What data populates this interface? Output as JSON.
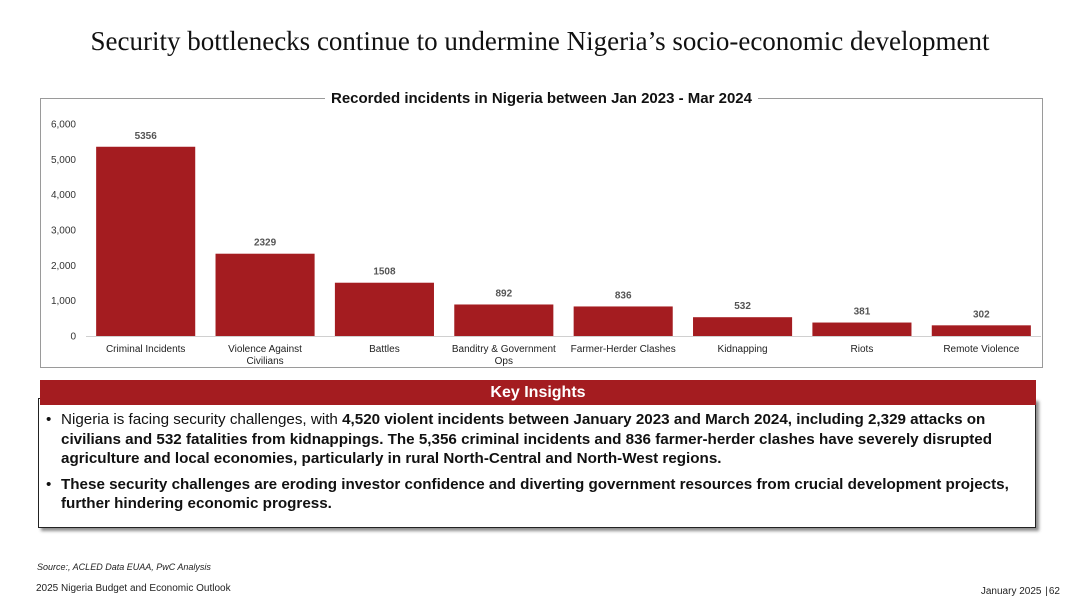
{
  "page": {
    "title": "Security bottlenecks continue to undermine Nigeria’s socio-economic development",
    "source": "Source:, ACLED Data EUAA, PwC Analysis",
    "footer_left": "2025 Nigeria Budget and Economic Outlook",
    "footer_date": "January 2025",
    "footer_page": "62"
  },
  "insights": {
    "header": "Key Insights",
    "bullets": [
      {
        "plain": "Nigeria is facing security challenges, with ",
        "bold": "4,520 violent incidents between January 2023 and March 2024, including 2,329 attacks on civilians and 532 fatalities from kidnappings. The 5,356 criminal incidents and 836 farmer-herder clashes have severely disrupted agriculture and local economies, particularly in rural North-Central and North-West regions."
      },
      {
        "plain": "",
        "bold": "These security challenges are eroding investor confidence and diverting government resources from crucial development projects, further hindering economic progress."
      }
    ]
  },
  "chart_data": {
    "type": "bar",
    "title": "Recorded incidents in Nigeria between Jan 2023 - Mar 2024",
    "categories": [
      "Criminal Incidents",
      "Violence Against Civilians",
      "Battles",
      "Banditry & Government Ops",
      "Farmer-Herder Clashes",
      "Kidnapping",
      "Riots",
      "Remote Violence"
    ],
    "values": [
      5356,
      2329,
      1508,
      892,
      836,
      532,
      381,
      302
    ],
    "ylim": [
      0,
      6000
    ],
    "yticks": [
      0,
      1000,
      2000,
      3000,
      4000,
      5000,
      6000
    ],
    "ytick_labels": [
      "0",
      "1,000",
      "2,000",
      "3,000",
      "4,000",
      "5,000",
      "6,000"
    ],
    "grid": false,
    "colors": {
      "bar": "#a41c20",
      "label": "#555555",
      "axis": "#d0d0d0"
    }
  }
}
